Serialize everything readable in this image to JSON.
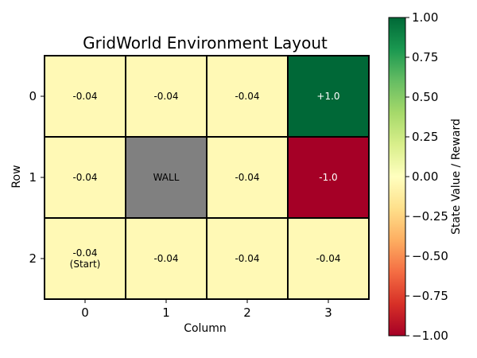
{
  "chart_data": {
    "type": "heatmap",
    "title": "GridWorld Environment Layout",
    "xlabel": "Column",
    "ylabel": "Row",
    "colorbar_label": "State Value / Reward",
    "x_categories": [
      "0",
      "1",
      "2",
      "3"
    ],
    "y_categories": [
      "0",
      "1",
      "2"
    ],
    "colorbar_range": [
      -1.0,
      1.0
    ],
    "colorbar_ticks": [
      "1.00",
      "0.75",
      "0.50",
      "0.25",
      "0.00",
      "−0.25",
      "−0.50",
      "−0.75",
      "−1.00"
    ],
    "colormap": "RdYlGn",
    "wall_color": "#808080",
    "cells": [
      {
        "row": 0,
        "col": 0,
        "value": -0.04,
        "label": "-0.04"
      },
      {
        "row": 0,
        "col": 1,
        "value": -0.04,
        "label": "-0.04"
      },
      {
        "row": 0,
        "col": 2,
        "value": -0.04,
        "label": "-0.04"
      },
      {
        "row": 0,
        "col": 3,
        "value": 1.0,
        "label": "+1.0"
      },
      {
        "row": 1,
        "col": 0,
        "value": -0.04,
        "label": "-0.04"
      },
      {
        "row": 1,
        "col": 1,
        "value": null,
        "label": "WALL",
        "wall": true
      },
      {
        "row": 1,
        "col": 2,
        "value": -0.04,
        "label": "-0.04"
      },
      {
        "row": 1,
        "col": 3,
        "value": -1.0,
        "label": "-1.0"
      },
      {
        "row": 2,
        "col": 0,
        "value": -0.04,
        "label": "-0.04\n(Start)"
      },
      {
        "row": 2,
        "col": 1,
        "value": -0.04,
        "label": "-0.04"
      },
      {
        "row": 2,
        "col": 2,
        "value": -0.04,
        "label": "-0.04"
      },
      {
        "row": 2,
        "col": 3,
        "value": -0.04,
        "label": "-0.04"
      }
    ]
  }
}
